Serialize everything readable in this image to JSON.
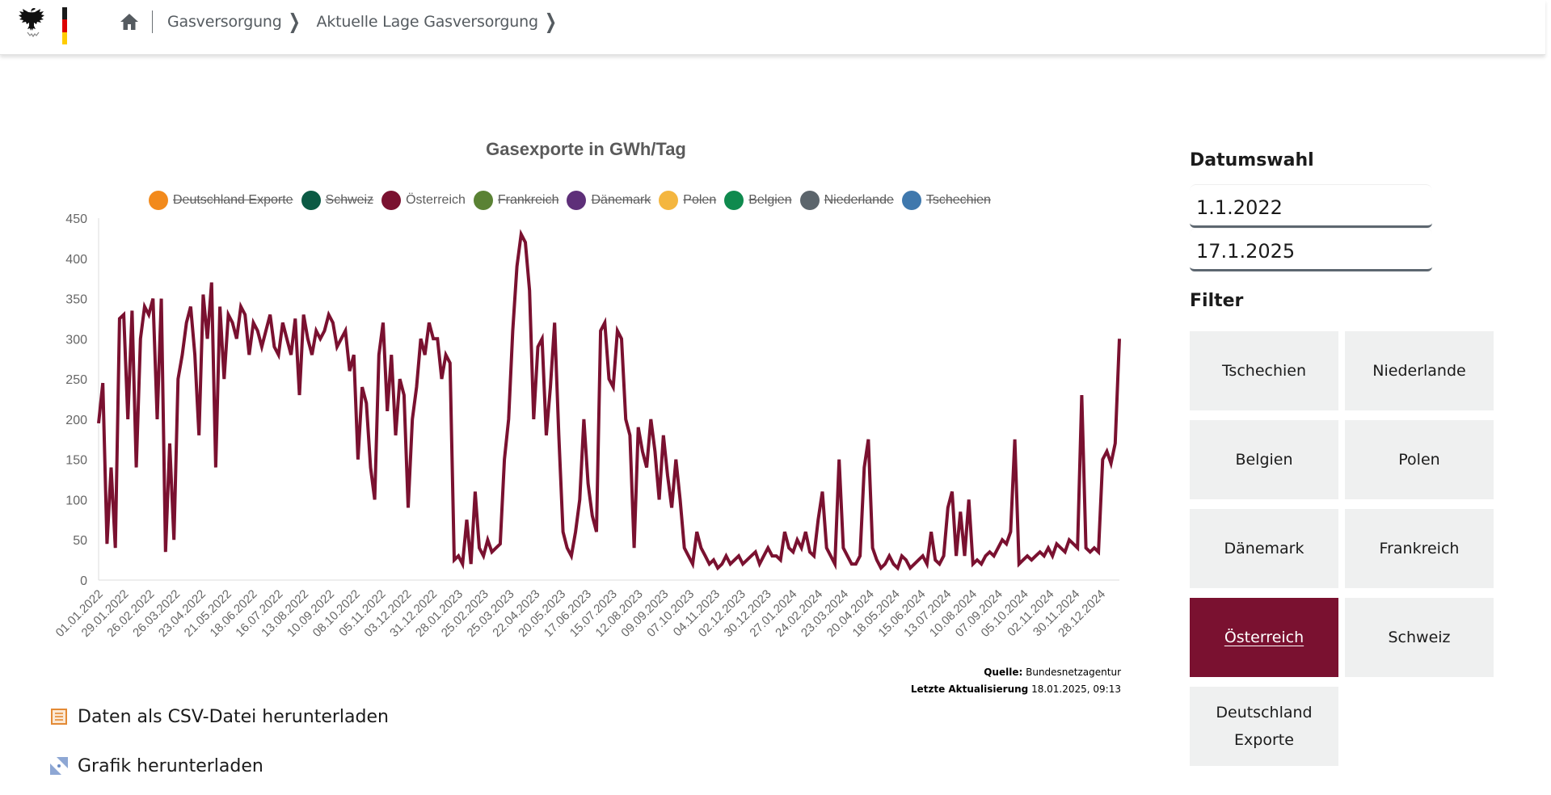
{
  "header": {
    "breadcrumb": [
      {
        "label": "Gasversorgung"
      },
      {
        "label": "Aktuelle Lage Gasversorgung"
      }
    ]
  },
  "chart": {
    "title": "Gasexporte in GWh/Tag",
    "legend": [
      {
        "label": "Deutschland Exporte",
        "color": "#f28a1c",
        "hidden": true
      },
      {
        "label": "Schweiz",
        "color": "#0b5a44",
        "hidden": true
      },
      {
        "label": "Österreich",
        "color": "#7a1130",
        "hidden": false
      },
      {
        "label": "Frankreich",
        "color": "#5a8234",
        "hidden": true
      },
      {
        "label": "Dänemark",
        "color": "#5e2f79",
        "hidden": true
      },
      {
        "label": "Polen",
        "color": "#f4b63f",
        "hidden": true
      },
      {
        "label": "Belgien",
        "color": "#0f8a4e",
        "hidden": true
      },
      {
        "label": "Niederlande",
        "color": "#5c656c",
        "hidden": true
      },
      {
        "label": "Tschechien",
        "color": "#3f78ad",
        "hidden": true
      }
    ],
    "source_label": "Quelle:",
    "source_value": "Bundesnetzagentur",
    "updated_label": "Letzte Aktualisierung",
    "updated_value": "18.01.2025, 09:13"
  },
  "chart_data": {
    "type": "line",
    "title": "Gasexporte in GWh/Tag",
    "xlabel": "",
    "ylabel": "",
    "ylim": [
      0,
      450
    ],
    "yticks": [
      0,
      50,
      100,
      150,
      200,
      250,
      300,
      350,
      400,
      450
    ],
    "x_start": "01.01.2022",
    "x_end": "17.01.2025",
    "x_step_days": 7,
    "xtick_labels": [
      "01.01.2022",
      "29.01.2022",
      "26.02.2022",
      "26.03.2022",
      "23.04.2022",
      "21.05.2022",
      "18.06.2022",
      "16.07.2022",
      "13.08.2022",
      "10.09.2022",
      "08.10.2022",
      "05.11.2022",
      "03.12.2022",
      "31.12.2022",
      "28.01.2023",
      "25.02.2023",
      "25.03.2023",
      "22.04.2023",
      "20.05.2023",
      "17.06.2023",
      "15.07.2023",
      "12.08.2023",
      "09.09.2023",
      "07.10.2023",
      "04.11.2023",
      "02.12.2023",
      "30.12.2023",
      "27.01.2024",
      "24.02.2024",
      "23.03.2024",
      "20.04.2024",
      "18.05.2024",
      "15.06.2024",
      "13.07.2024",
      "10.08.2024",
      "07.09.2024",
      "05.10.2024",
      "02.11.2024",
      "30.11.2024",
      "28.12.2024"
    ],
    "grid": false,
    "legend_position": "top",
    "series": [
      {
        "name": "Österreich",
        "color": "#7a1130",
        "values": [
          195,
          245,
          45,
          140,
          40,
          325,
          330,
          200,
          335,
          140,
          300,
          340,
          330,
          350,
          200,
          350,
          35,
          170,
          50,
          250,
          280,
          320,
          340,
          280,
          180,
          355,
          300,
          370,
          140,
          340,
          250,
          330,
          320,
          300,
          340,
          330,
          280,
          320,
          310,
          290,
          310,
          330,
          290,
          280,
          320,
          300,
          280,
          325,
          230,
          330,
          300,
          280,
          310,
          300,
          310,
          330,
          320,
          290,
          300,
          310,
          260,
          280,
          150,
          240,
          220,
          140,
          100,
          280,
          320,
          210,
          280,
          180,
          250,
          230,
          90,
          200,
          240,
          300,
          280,
          320,
          300,
          300,
          250,
          280,
          270,
          25,
          30,
          20,
          75,
          20,
          110,
          40,
          30,
          50,
          35,
          40,
          45,
          150,
          200,
          310,
          390,
          430,
          420,
          360,
          200,
          290,
          300,
          180,
          240,
          320,
          180,
          60,
          40,
          30,
          60,
          100,
          200,
          120,
          80,
          60,
          310,
          320,
          250,
          240,
          310,
          300,
          200,
          180,
          40,
          190,
          160,
          140,
          200,
          160,
          100,
          180,
          130,
          90,
          150,
          100,
          40,
          30,
          20,
          60,
          40,
          30,
          20,
          25,
          15,
          20,
          30,
          20,
          25,
          30,
          20,
          25,
          30,
          35,
          20,
          30,
          40,
          30,
          30,
          25,
          60,
          40,
          35,
          50,
          40,
          60,
          35,
          30,
          75,
          110,
          40,
          30,
          20,
          150,
          40,
          30,
          20,
          20,
          30,
          140,
          175,
          40,
          25,
          15,
          20,
          30,
          20,
          15,
          30,
          25,
          15,
          20,
          25,
          30,
          20,
          60,
          25,
          20,
          30,
          90,
          110,
          30,
          85,
          30,
          100,
          20,
          25,
          20,
          30,
          35,
          30,
          40,
          50,
          45,
          60,
          175,
          20,
          25,
          30,
          25,
          30,
          35,
          30,
          40,
          30,
          45,
          40,
          35,
          50,
          45,
          40,
          230,
          40,
          35,
          40,
          35,
          150,
          160,
          145,
          170,
          300
        ]
      }
    ]
  },
  "downloads": {
    "csv_label": "Daten als CSV-Datei herunterladen",
    "image_label": "Grafik herunterladen"
  },
  "sidebar": {
    "date_heading": "Datumswahl",
    "date_from": "1.1.2022",
    "date_to": "17.1.2025",
    "filter_heading": "Filter",
    "filters": [
      {
        "label": "Tschechien",
        "active": false
      },
      {
        "label": "Niederlande",
        "active": false
      },
      {
        "label": "Belgien",
        "active": false
      },
      {
        "label": "Polen",
        "active": false
      },
      {
        "label": "Dänemark",
        "active": false
      },
      {
        "label": "Frankreich",
        "active": false
      },
      {
        "label": "Österreich",
        "active": true
      },
      {
        "label": "Schweiz",
        "active": false
      },
      {
        "label": "Deutschland Exporte",
        "active": false
      }
    ]
  }
}
